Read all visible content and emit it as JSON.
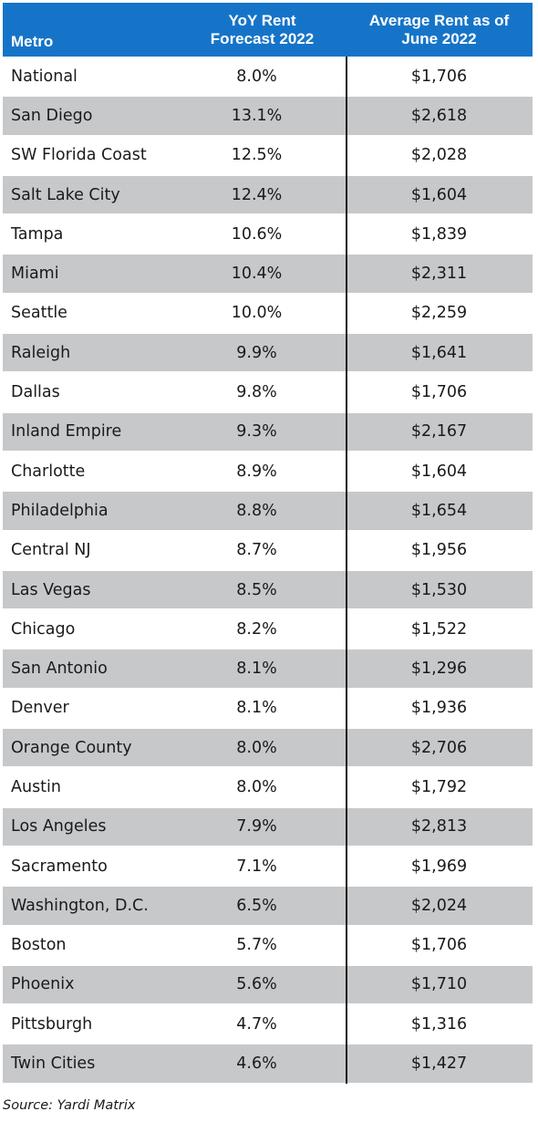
{
  "table": {
    "headers": {
      "metro": "Metro",
      "forecast_line1": "YoY Rent",
      "forecast_line2": "Forecast 2022",
      "avg_line1": "Average Rent as of",
      "avg_line2": "June 2022"
    },
    "rows": [
      {
        "metro": "National",
        "forecast": "8.0%",
        "avg_rent": "$1,706"
      },
      {
        "metro": "San Diego",
        "forecast": "13.1%",
        "avg_rent": "$2,618"
      },
      {
        "metro": "SW Florida Coast",
        "forecast": "12.5%",
        "avg_rent": "$2,028"
      },
      {
        "metro": "Salt Lake City",
        "forecast": "12.4%",
        "avg_rent": "$1,604"
      },
      {
        "metro": "Tampa",
        "forecast": "10.6%",
        "avg_rent": "$1,839"
      },
      {
        "metro": "Miami",
        "forecast": "10.4%",
        "avg_rent": "$2,311"
      },
      {
        "metro": "Seattle",
        "forecast": "10.0%",
        "avg_rent": "$2,259"
      },
      {
        "metro": "Raleigh",
        "forecast": "9.9%",
        "avg_rent": "$1,641"
      },
      {
        "metro": "Dallas",
        "forecast": "9.8%",
        "avg_rent": "$1,706"
      },
      {
        "metro": "Inland Empire",
        "forecast": "9.3%",
        "avg_rent": "$2,167"
      },
      {
        "metro": "Charlotte",
        "forecast": "8.9%",
        "avg_rent": "$1,604"
      },
      {
        "metro": "Philadelphia",
        "forecast": "8.8%",
        "avg_rent": "$1,654"
      },
      {
        "metro": "Central NJ",
        "forecast": "8.7%",
        "avg_rent": "$1,956"
      },
      {
        "metro": "Las Vegas",
        "forecast": "8.5%",
        "avg_rent": "$1,530"
      },
      {
        "metro": "Chicago",
        "forecast": "8.2%",
        "avg_rent": "$1,522"
      },
      {
        "metro": "San Antonio",
        "forecast": "8.1%",
        "avg_rent": "$1,296"
      },
      {
        "metro": "Denver",
        "forecast": "8.1%",
        "avg_rent": "$1,936"
      },
      {
        "metro": "Orange County",
        "forecast": "8.0%",
        "avg_rent": "$2,706"
      },
      {
        "metro": "Austin",
        "forecast": "8.0%",
        "avg_rent": "$1,792"
      },
      {
        "metro": "Los Angeles",
        "forecast": "7.9%",
        "avg_rent": "$2,813"
      },
      {
        "metro": "Sacramento",
        "forecast": "7.1%",
        "avg_rent": "$1,969"
      },
      {
        "metro": "Washington, D.C.",
        "forecast": "6.5%",
        "avg_rent": "$2,024"
      },
      {
        "metro": "Boston",
        "forecast": "5.7%",
        "avg_rent": "$1,706"
      },
      {
        "metro": "Phoenix",
        "forecast": "5.6%",
        "avg_rent": "$1,710"
      },
      {
        "metro": "Pittsburgh",
        "forecast": "4.7%",
        "avg_rent": "$1,316"
      },
      {
        "metro": "Twin Cities",
        "forecast": "4.6%",
        "avg_rent": "$1,427"
      }
    ]
  },
  "source": "Source: Yardi Matrix",
  "colors": {
    "header_bg": "#1674c8",
    "header_text": "#ffffff",
    "shaded_row": "#c7c8ca",
    "divider": "#1a1a1a"
  }
}
